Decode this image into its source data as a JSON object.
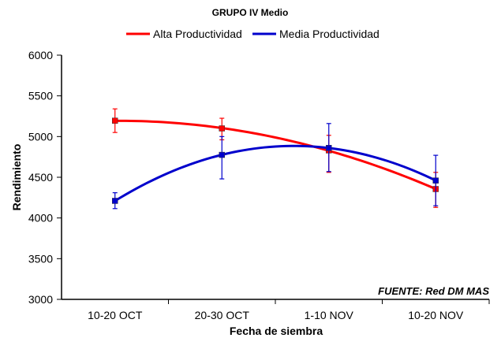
{
  "chart_data": {
    "type": "line",
    "title": "GRUPO IV Medio",
    "xlabel": "Fecha de siembra",
    "ylabel": "Rendimiento",
    "categories": [
      "10-20 OCT",
      "20-30 OCT",
      "1-10 NOV",
      "10-20 NOV"
    ],
    "ylim": [
      3000,
      6000
    ],
    "yticks": [
      3000,
      3500,
      4000,
      4500,
      5000,
      5500,
      6000
    ],
    "legend_position": "top",
    "source_note": "FUENTE: Red DM MAS",
    "series": [
      {
        "name": "Alta Productividad",
        "color": "#ff0000",
        "values": [
          5195,
          5100,
          4830,
          4355
        ],
        "err_low": [
          5050,
          4960,
          4560,
          4130
        ],
        "err_high": [
          5340,
          5225,
          5015,
          4560
        ]
      },
      {
        "name": "Media Productividad",
        "color": "#0000cc",
        "values": [
          4210,
          4775,
          4860,
          4460
        ],
        "err_low": [
          4115,
          4480,
          4570,
          4150
        ],
        "err_high": [
          4310,
          5000,
          5160,
          4770
        ]
      }
    ]
  }
}
